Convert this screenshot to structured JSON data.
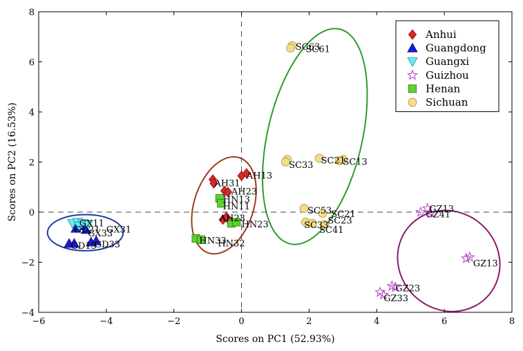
{
  "chart_data": {
    "type": "scatter",
    "title": "",
    "xlabel": "Scores on PC1 (52.93%)",
    "ylabel": "Scores on PC2 (16.53%)",
    "xlim": [
      -6,
      8
    ],
    "ylim": [
      -4,
      8
    ],
    "xticks": [
      -6,
      -4,
      -2,
      0,
      2,
      4,
      6,
      8
    ],
    "yticks": [
      -4,
      -2,
      0,
      2,
      4,
      6,
      8
    ],
    "xtick_labels": [
      "−6",
      "−4",
      "−2",
      "0",
      "2",
      "4",
      "6",
      "8"
    ],
    "ytick_labels": [
      "−4",
      "−2",
      "0",
      "2",
      "4",
      "6",
      "8"
    ],
    "grid": false,
    "reference_lines": [
      {
        "axis": "x",
        "value": 0,
        "style": "dashed"
      },
      {
        "axis": "y",
        "value": 0,
        "style": "dashed"
      }
    ],
    "legend_position": "top-right",
    "series": [
      {
        "name": "Anhui",
        "marker": "diamond",
        "color": "#d42a2a",
        "stroke": "#8a1212",
        "points": [
          [
            -0.85,
            1.3
          ],
          [
            -0.82,
            1.15
          ],
          [
            -0.5,
            0.85
          ],
          [
            -0.4,
            0.8
          ],
          [
            0.0,
            1.45
          ],
          [
            0.15,
            1.55
          ],
          [
            -0.55,
            -0.3
          ],
          [
            -0.45,
            -0.2
          ],
          [
            -0.35,
            -0.35
          ]
        ],
        "labels": [
          {
            "text": "AH31",
            "x": -0.8,
            "y": 1.15
          },
          {
            "text": "AH23",
            "x": -0.3,
            "y": 0.82
          },
          {
            "text": "AH13",
            "x": 0.15,
            "y": 1.45
          },
          {
            "text": "AH23",
            "x": -0.65,
            "y": -0.25
          }
        ]
      },
      {
        "name": "Guangdong",
        "marker": "triangle",
        "color": "#1c1cd6",
        "stroke": "#0a0a80",
        "points": [
          [
            -4.9,
            -0.65
          ],
          [
            -4.75,
            -0.55
          ],
          [
            -4.6,
            -0.7
          ],
          [
            -5.1,
            -1.25
          ],
          [
            -4.95,
            -1.25
          ],
          [
            -4.45,
            -1.2
          ],
          [
            -4.3,
            -1.15
          ]
        ],
        "labels": [
          {
            "text": "GD21",
            "x": -4.95,
            "y": -0.7
          },
          {
            "text": "GD13",
            "x": -5.05,
            "y": -1.35
          },
          {
            "text": "GD33",
            "x": -4.35,
            "y": -1.3
          }
        ]
      },
      {
        "name": "Guangxi",
        "marker": "triangle-down",
        "color": "#66ecf2",
        "stroke": "#1f8fa0",
        "points": [
          [
            -5.0,
            -0.45
          ],
          [
            -4.85,
            -0.4
          ],
          [
            -4.7,
            -0.45
          ],
          [
            -4.55,
            -0.5
          ],
          [
            -4.8,
            -0.55
          ]
        ],
        "labels": [
          {
            "text": "GX11",
            "x": -4.8,
            "y": -0.45
          },
          {
            "text": "GX31",
            "x": -4.0,
            "y": -0.7
          },
          {
            "text": "GX33",
            "x": -4.55,
            "y": -0.85
          }
        ]
      },
      {
        "name": "Guizhou",
        "marker": "star",
        "color": "#b040c0",
        "stroke": "#b040c0",
        "points": [
          [
            5.5,
            0.15
          ],
          [
            5.3,
            0.0
          ],
          [
            5.6,
            -0.05
          ],
          [
            6.65,
            -1.85
          ],
          [
            6.75,
            -1.8
          ],
          [
            4.45,
            -2.95
          ],
          [
            4.55,
            -3.0
          ],
          [
            4.1,
            -3.2
          ],
          [
            4.2,
            -3.3
          ]
        ],
        "labels": [
          {
            "text": "GZ13",
            "x": 5.55,
            "y": 0.12
          },
          {
            "text": "GZ41",
            "x": 5.45,
            "y": -0.1
          },
          {
            "text": "GZ13",
            "x": 6.85,
            "y": -2.05
          },
          {
            "text": "GZ23",
            "x": 4.55,
            "y": -3.05
          },
          {
            "text": "GZ33",
            "x": 4.2,
            "y": -3.45
          }
        ]
      },
      {
        "name": "Henan",
        "marker": "square",
        "color": "#5ed12e",
        "stroke": "#2d7a14",
        "points": [
          [
            -0.65,
            0.55
          ],
          [
            -0.6,
            0.35
          ],
          [
            -1.35,
            -1.05
          ],
          [
            -1.2,
            -1.1
          ],
          [
            -0.3,
            -0.45
          ],
          [
            -0.15,
            -0.4
          ]
        ],
        "labels": [
          {
            "text": "HN13",
            "x": -0.55,
            "y": 0.5
          },
          {
            "text": "HN11",
            "x": -0.55,
            "y": 0.22
          },
          {
            "text": "HN33",
            "x": -1.25,
            "y": -1.15
          },
          {
            "text": "HN32",
            "x": -0.7,
            "y": -1.25
          },
          {
            "text": "HN23",
            "x": 0.0,
            "y": -0.5
          }
        ]
      },
      {
        "name": "Sichuan",
        "marker": "circle",
        "color": "#f3dd8a",
        "stroke": "#a88f3a",
        "points": [
          [
            1.5,
            6.65
          ],
          [
            1.45,
            6.55
          ],
          [
            1.35,
            2.1
          ],
          [
            1.3,
            2.0
          ],
          [
            2.3,
            2.15
          ],
          [
            2.9,
            2.05
          ],
          [
            3.0,
            2.1
          ],
          [
            1.85,
            0.15
          ],
          [
            2.4,
            -0.05
          ],
          [
            1.9,
            -0.4
          ],
          [
            2.1,
            -0.45
          ],
          [
            2.45,
            -0.5
          ]
        ],
        "labels": [
          {
            "text": "SC63",
            "x": 1.6,
            "y": 6.6
          },
          {
            "text": "SC61",
            "x": 1.9,
            "y": 6.5
          },
          {
            "text": "SC33",
            "x": 1.4,
            "y": 1.88
          },
          {
            "text": "SC21",
            "x": 2.35,
            "y": 2.05
          },
          {
            "text": "SC13",
            "x": 3.0,
            "y": 2.0
          },
          {
            "text": "SC53",
            "x": 1.95,
            "y": 0.05
          },
          {
            "text": "SC21",
            "x": 2.65,
            "y": -0.08
          },
          {
            "text": "SC23",
            "x": 2.55,
            "y": -0.35
          },
          {
            "text": "SC41",
            "x": 2.3,
            "y": -0.72
          },
          {
            "text": "SC33",
            "x": 1.85,
            "y": -0.52
          }
        ]
      }
    ],
    "ellipses": [
      {
        "group": "Guangdong/Guangxi",
        "color": "#1f3aa0",
        "cx": -4.62,
        "cy": -0.82,
        "rx": 1.12,
        "ry": 0.72,
        "angle_deg": 0
      },
      {
        "group": "Anhui/Henan",
        "color": "#a03a1a",
        "cx": -0.52,
        "cy": 0.27,
        "rx": 0.88,
        "ry": 2.0,
        "angle_deg": 18
      },
      {
        "group": "Sichuan",
        "color": "#2f9a2a",
        "cx": 2.17,
        "cy": 3.02,
        "rx": 1.4,
        "ry": 4.4,
        "angle_deg": 13
      },
      {
        "group": "Guizhou",
        "color": "#8a1a6a",
        "cx": 6.13,
        "cy": -1.95,
        "rx": 1.45,
        "ry": 2.1,
        "angle_deg": -50
      }
    ]
  }
}
